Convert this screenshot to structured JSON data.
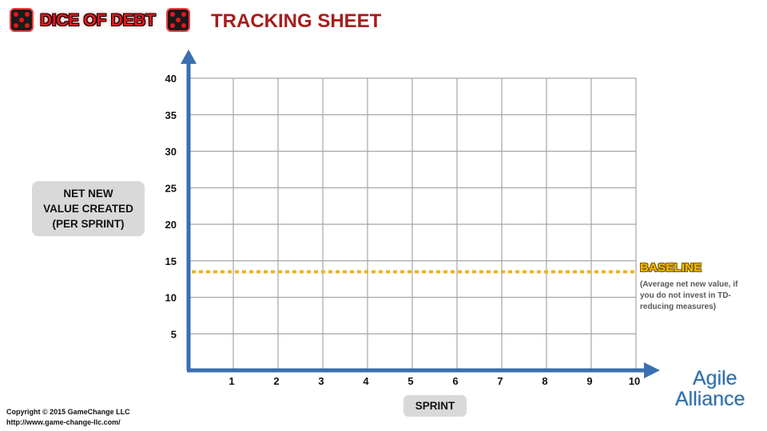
{
  "header": {
    "logo_text": "DICE OF DEBT",
    "title": "TRACKING SHEET"
  },
  "chart_data": {
    "type": "line",
    "title": "TRACKING SHEET",
    "xlabel": "SPRINT",
    "ylabel_lines": [
      "NET NEW",
      "VALUE CREATED",
      "(PER SPRINT)"
    ],
    "x_ticks": [
      1,
      2,
      3,
      4,
      5,
      6,
      7,
      8,
      9,
      10
    ],
    "y_ticks": [
      5,
      10,
      15,
      20,
      25,
      30,
      35,
      40
    ],
    "xlim": [
      0,
      10
    ],
    "ylim": [
      0,
      40
    ],
    "grid": true,
    "series": [],
    "baseline": {
      "label": "BASELINE",
      "value": 13.5,
      "note": "(Average net new value, if you do not invest in TD-reducing measures)",
      "color": "#f2b21b"
    }
  },
  "colors": {
    "axis": "#3a6fb0",
    "grid": "#a6a6a6",
    "title": "#a61c1c",
    "logo_red": "#e3161e"
  },
  "footer": {
    "copyright": "Copyright © 2015 GameChange LLC",
    "url": "http://www.game-change-llc.com/",
    "partner_logo_line1": "Agile",
    "partner_logo_line2": "Alliance"
  }
}
